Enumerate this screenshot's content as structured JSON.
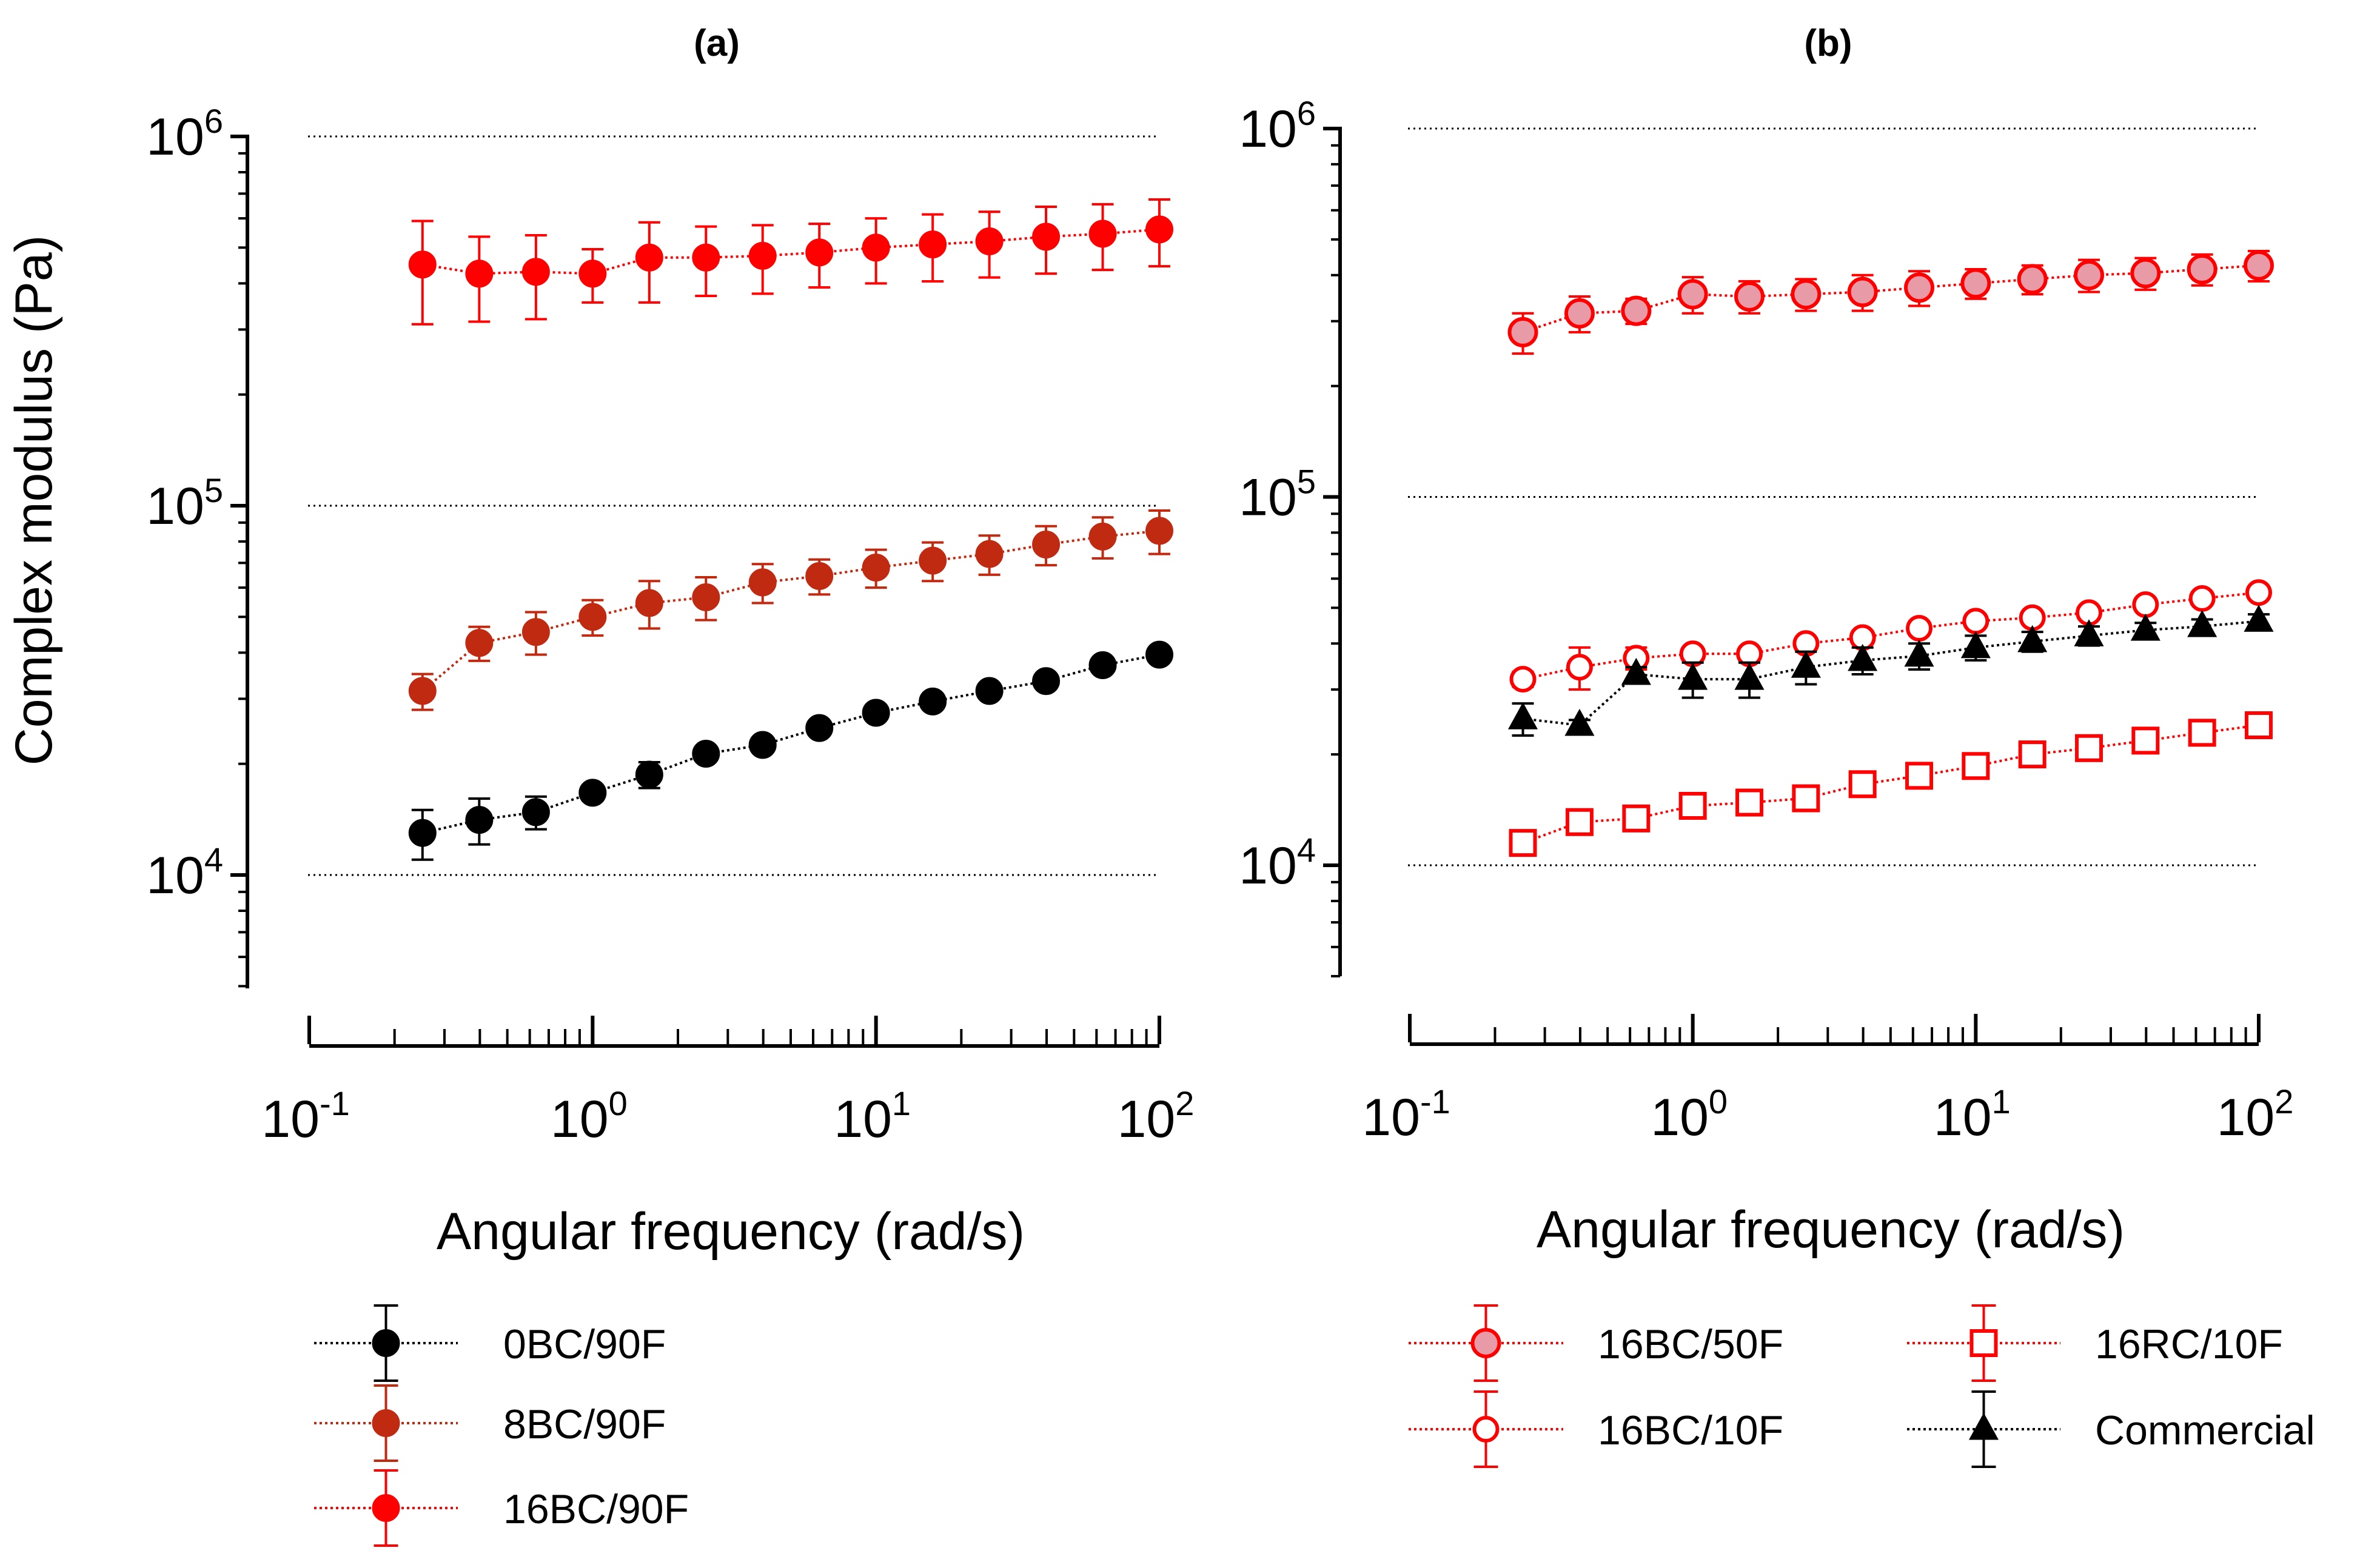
{
  "chart_data": [
    {
      "type": "scatter",
      "panel_label": "(a)",
      "xlabel": "Angular frequency (rad/s)",
      "ylabel": "Complex modulus (Pa)",
      "xscale": "log",
      "yscale": "log",
      "xlim": [
        0.1,
        100
      ],
      "ylim": [
        5000,
        1000000
      ],
      "xticks": [
        {
          "base": "10",
          "exp": "-1"
        },
        {
          "base": "10",
          "exp": "0"
        },
        {
          "base": "10",
          "exp": "1"
        },
        {
          "base": "10",
          "exp": "2"
        }
      ],
      "yticks": [
        {
          "base": "10",
          "exp": "4"
        },
        {
          "base": "10",
          "exp": "5"
        },
        {
          "base": "10",
          "exp": "6"
        }
      ],
      "grid": "horizontal dotted at major y ticks",
      "legend_position": "below",
      "x": [
        0.251,
        0.398,
        0.631,
        1.0,
        1.585,
        2.512,
        3.981,
        6.31,
        10.0,
        15.85,
        25.12,
        39.81,
        63.1,
        100.0
      ],
      "series": [
        {
          "name": "0BC/90F",
          "color": "#000000",
          "marker": "circle-filled",
          "fill": "#000000",
          "values": [
            13000,
            14100,
            14800,
            16700,
            18700,
            21300,
            22500,
            25000,
            27500,
            29500,
            31500,
            33500,
            37000,
            39500
          ],
          "errors": [
            2000,
            2000,
            1500,
            800,
            1500,
            800,
            700,
            800,
            800,
            700,
            700,
            800,
            800,
            1000
          ]
        },
        {
          "name": "8BC/90F",
          "color": "#c02a10",
          "marker": "circle-filled",
          "fill": "#c02a10",
          "values": [
            31500,
            42500,
            45500,
            50000,
            54500,
            56500,
            62000,
            64500,
            68000,
            71000,
            74000,
            78500,
            82500,
            85500
          ],
          "errors": [
            3500,
            4500,
            6000,
            5500,
            8000,
            7500,
            7500,
            7000,
            8000,
            8500,
            9000,
            9500,
            10500,
            11500
          ]
        },
        {
          "name": "16BC/90F",
          "color": "#ff0000",
          "marker": "circle-filled",
          "fill": "#ff0000",
          "values": [
            450000,
            425000,
            430000,
            425000,
            470000,
            470000,
            475000,
            485000,
            500000,
            510000,
            520000,
            535000,
            545000,
            560000
          ],
          "errors": [
            140000,
            110000,
            110000,
            70000,
            115000,
            100000,
            100000,
            95000,
            100000,
            105000,
            105000,
            110000,
            110000,
            115000
          ]
        }
      ]
    },
    {
      "type": "scatter",
      "panel_label": "(b)",
      "xlabel": "Angular frequency (rad/s)",
      "ylabel": "",
      "xscale": "log",
      "yscale": "log",
      "xlim": [
        0.1,
        100
      ],
      "ylim": [
        5000,
        1000000
      ],
      "xticks": [
        {
          "base": "10",
          "exp": "-1"
        },
        {
          "base": "10",
          "exp": "0"
        },
        {
          "base": "10",
          "exp": "1"
        },
        {
          "base": "10",
          "exp": "2"
        }
      ],
      "yticks": [
        {
          "base": "10",
          "exp": "4"
        },
        {
          "base": "10",
          "exp": "5"
        },
        {
          "base": "10",
          "exp": "6"
        }
      ],
      "grid": "horizontal dotted at major y ticks",
      "legend_position": "below",
      "x": [
        0.251,
        0.398,
        0.631,
        1.0,
        1.585,
        2.512,
        3.981,
        6.31,
        10.0,
        15.85,
        25.12,
        39.81,
        63.1,
        100.0
      ],
      "series": [
        {
          "name": "16BC/50F",
          "color": "#ff0000",
          "marker": "circle-filled",
          "fill": "#e89aa6",
          "values": [
            280000,
            315000,
            320000,
            355000,
            350000,
            355000,
            360000,
            370000,
            380000,
            390000,
            400000,
            405000,
            415000,
            425000
          ],
          "errors": [
            35000,
            35000,
            25000,
            40000,
            35000,
            35000,
            40000,
            40000,
            35000,
            35000,
            40000,
            40000,
            40000,
            40000
          ]
        },
        {
          "name": "16BC/10F",
          "color": "#ff0000",
          "marker": "circle-open",
          "fill": "#ffffff",
          "values": [
            32000,
            34500,
            36500,
            37500,
            37500,
            40000,
            41500,
            44000,
            46000,
            47000,
            48500,
            51000,
            53000,
            55000
          ],
          "errors": [
            1500,
            4500,
            2500,
            1500,
            1500,
            1500,
            1500,
            1500,
            1500,
            1500,
            1500,
            1500,
            1500,
            1500
          ]
        },
        {
          "name": "16RC/10F",
          "color": "#ff0000",
          "marker": "square-open",
          "fill": "#ffffff",
          "values": [
            11500,
            13100,
            13400,
            14500,
            14800,
            15200,
            16600,
            17500,
            18600,
            20000,
            20800,
            21800,
            22900,
            24000
          ],
          "errors": [
            600,
            400,
            400,
            500,
            400,
            400,
            600,
            600,
            600,
            600,
            600,
            600,
            700,
            700
          ]
        },
        {
          "name": "Commercial",
          "color": "#000000",
          "marker": "triangle-filled",
          "fill": "#000000",
          "values": [
            25000,
            24000,
            33000,
            32000,
            32000,
            34500,
            36000,
            37000,
            39000,
            40500,
            42000,
            43500,
            44500,
            46000
          ],
          "errors": [
            2500,
            800,
            1500,
            3500,
            3500,
            3500,
            3000,
            3000,
            3000,
            2500,
            2500,
            2000,
            2000,
            2000
          ]
        }
      ]
    }
  ]
}
